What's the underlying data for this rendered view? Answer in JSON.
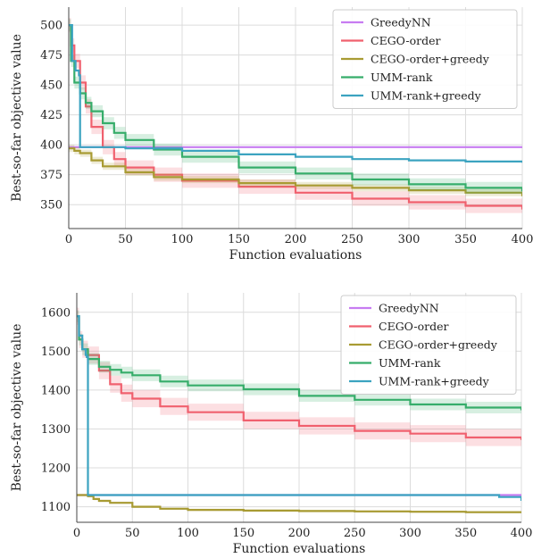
{
  "chart_data": [
    {
      "type": "line",
      "xlabel": "Function evaluations",
      "ylabel": "Best-so-far objective value",
      "xlim": [
        0,
        400
      ],
      "ylim": [
        330,
        515
      ],
      "xticks": [
        0,
        50,
        100,
        150,
        200,
        250,
        300,
        350,
        400
      ],
      "yticks": [
        350,
        375,
        400,
        425,
        450,
        475,
        500
      ],
      "grid": true,
      "legend_position": "top-right",
      "series": [
        {
          "name": "GreedyNN",
          "color": "#c77cf1",
          "x": [
            0,
            400
          ],
          "y": [
            398,
            398
          ],
          "band": 0
        },
        {
          "name": "CEGO-order",
          "color": "#f0606e",
          "x": [
            0,
            2,
            5,
            10,
            15,
            20,
            30,
            40,
            50,
            75,
            100,
            150,
            200,
            250,
            300,
            350,
            400
          ],
          "y": [
            500,
            483,
            470,
            452,
            432,
            415,
            398,
            388,
            381,
            375,
            370,
            365,
            360,
            355,
            352,
            349,
            346
          ],
          "band": 6
        },
        {
          "name": "CEGO-order+greedy",
          "color": "#a89b33",
          "x": [
            0,
            5,
            10,
            20,
            30,
            50,
            75,
            100,
            150,
            200,
            250,
            300,
            350,
            400
          ],
          "y": [
            397,
            395,
            393,
            387,
            382,
            377,
            373,
            371,
            368,
            366,
            364,
            362,
            360,
            357
          ],
          "band": 3
        },
        {
          "name": "UMM-rank",
          "color": "#36ad6a",
          "x": [
            0,
            2,
            5,
            10,
            15,
            20,
            30,
            40,
            50,
            75,
            100,
            150,
            200,
            250,
            300,
            350,
            400
          ],
          "y": [
            500,
            470,
            452,
            443,
            435,
            428,
            418,
            410,
            404,
            396,
            390,
            381,
            376,
            371,
            367,
            364,
            361
          ],
          "band": 5
        },
        {
          "name": "UMM-rank+greedy",
          "color": "#3ba3c0",
          "x": [
            0,
            3,
            6,
            9,
            10,
            50,
            100,
            150,
            200,
            250,
            300,
            350,
            400
          ],
          "y": [
            500,
            470,
            462,
            458,
            398,
            397,
            395,
            392,
            390,
            388,
            387,
            386,
            385
          ],
          "band": 0
        }
      ]
    },
    {
      "type": "line",
      "xlabel": "Function evaluations",
      "ylabel": "Best-so-far objective value",
      "xlim": [
        0,
        400
      ],
      "ylim": [
        1060,
        1650
      ],
      "xticks": [
        0,
        50,
        100,
        150,
        200,
        250,
        300,
        350,
        400
      ],
      "yticks": [
        1100,
        1200,
        1300,
        1400,
        1500,
        1600
      ],
      "grid": true,
      "legend_position": "top-right",
      "series": [
        {
          "name": "GreedyNN",
          "color": "#c77cf1",
          "x": [
            0,
            400
          ],
          "y": [
            1130,
            1130
          ],
          "band": 0
        },
        {
          "name": "CEGO-order",
          "color": "#f0606e",
          "x": [
            0,
            2,
            5,
            10,
            20,
            30,
            40,
            50,
            75,
            100,
            150,
            200,
            250,
            300,
            350,
            400
          ],
          "y": [
            1590,
            1530,
            1505,
            1490,
            1450,
            1415,
            1392,
            1378,
            1358,
            1343,
            1322,
            1308,
            1295,
            1288,
            1278,
            1272
          ],
          "band": 22
        },
        {
          "name": "CEGO-order+greedy",
          "color": "#a89b33",
          "x": [
            0,
            5,
            10,
            15,
            20,
            30,
            50,
            75,
            100,
            150,
            200,
            250,
            300,
            350,
            400
          ],
          "y": [
            1130,
            1130,
            1127,
            1120,
            1115,
            1110,
            1100,
            1095,
            1092,
            1090,
            1089,
            1088,
            1087,
            1086,
            1085
          ],
          "band": 3
        },
        {
          "name": "UMM-rank",
          "color": "#36ad6a",
          "x": [
            0,
            2,
            5,
            10,
            20,
            30,
            40,
            50,
            75,
            100,
            150,
            200,
            250,
            300,
            350,
            400
          ],
          "y": [
            1590,
            1530,
            1505,
            1480,
            1460,
            1452,
            1445,
            1438,
            1422,
            1412,
            1402,
            1385,
            1375,
            1363,
            1355,
            1348
          ],
          "band": 15
        },
        {
          "name": "UMM-rank+greedy",
          "color": "#3ba3c0",
          "x": [
            0,
            2,
            5,
            8,
            9,
            10,
            50,
            100,
            200,
            300,
            350,
            380,
            400
          ],
          "y": [
            1590,
            1540,
            1505,
            1490,
            1485,
            1130,
            1130,
            1130,
            1130,
            1130,
            1130,
            1125,
            1115
          ],
          "band": 0
        }
      ]
    }
  ]
}
